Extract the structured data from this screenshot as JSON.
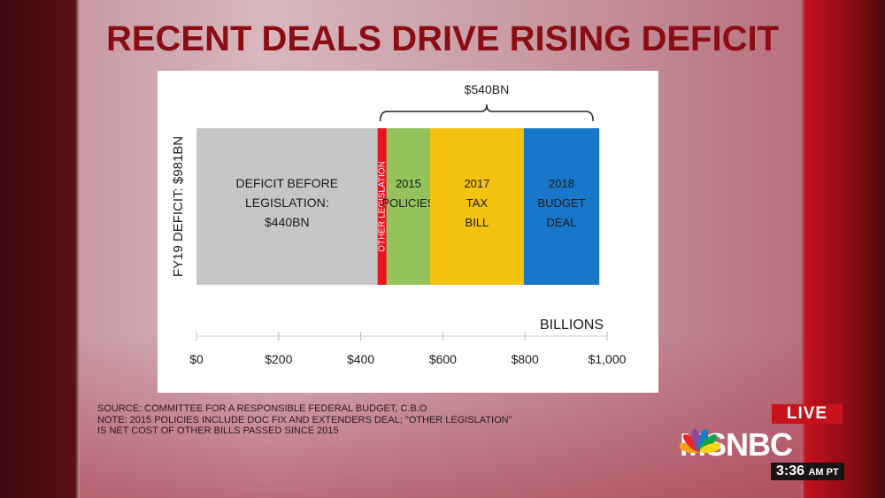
{
  "title": "RECENT DEALS DRIVE RISING DEFICIT",
  "chart_data": {
    "type": "bar",
    "orientation": "horizontal-stacked",
    "ylabel": "FY19 DEFICIT: $981BN",
    "xlabel": "BILLIONS",
    "xlim": [
      0,
      1000
    ],
    "xticks": [
      0,
      200,
      400,
      600,
      800,
      1000
    ],
    "xtick_labels": [
      "$0",
      "$200",
      "$400",
      "$600",
      "$800",
      "$1,000"
    ],
    "segments": [
      {
        "label": "DEFICIT BEFORE LEGISLATION: $440BN",
        "lines": [
          "DEFICIT BEFORE",
          "LEGISLATION:",
          "$440BN"
        ],
        "value": 441,
        "color": "#c6c6c6"
      },
      {
        "label": "OTHER LEGISLATION",
        "lines": [
          "OTHER LEGISLATION"
        ],
        "value": 22,
        "color": "#e5141d"
      },
      {
        "label": "2015 POLICIES",
        "lines": [
          "2015",
          "POLICIES"
        ],
        "value": 106,
        "color": "#93c35a"
      },
      {
        "label": "2017 TAX BILL",
        "lines": [
          "2017",
          "TAX",
          "BILL"
        ],
        "value": 228,
        "color": "#f5c20f"
      },
      {
        "label": "2018 BUDGET DEAL",
        "lines": [
          "2018",
          "BUDGET",
          "DEAL"
        ],
        "value": 184,
        "color": "#1877c9"
      }
    ],
    "bracket": {
      "label": "$540BN",
      "from": 441,
      "to": 981
    }
  },
  "notes": [
    "SOURCE: COMMITTEE FOR A RESPONSIBLE FEDERAL BUDGET, C.B.O",
    "NOTE: 2015 POLICIES  INCLUDE DOC FIX AND EXTENDERS DEAL; \"OTHER LEGISLATION\"",
    "IS NET COST OF OTHER BILLS PASSED SINCE 2015"
  ],
  "overlay": {
    "live": "LIVE",
    "network": "MSNBC",
    "time": "3:36",
    "time_suffix": "AM PT"
  }
}
